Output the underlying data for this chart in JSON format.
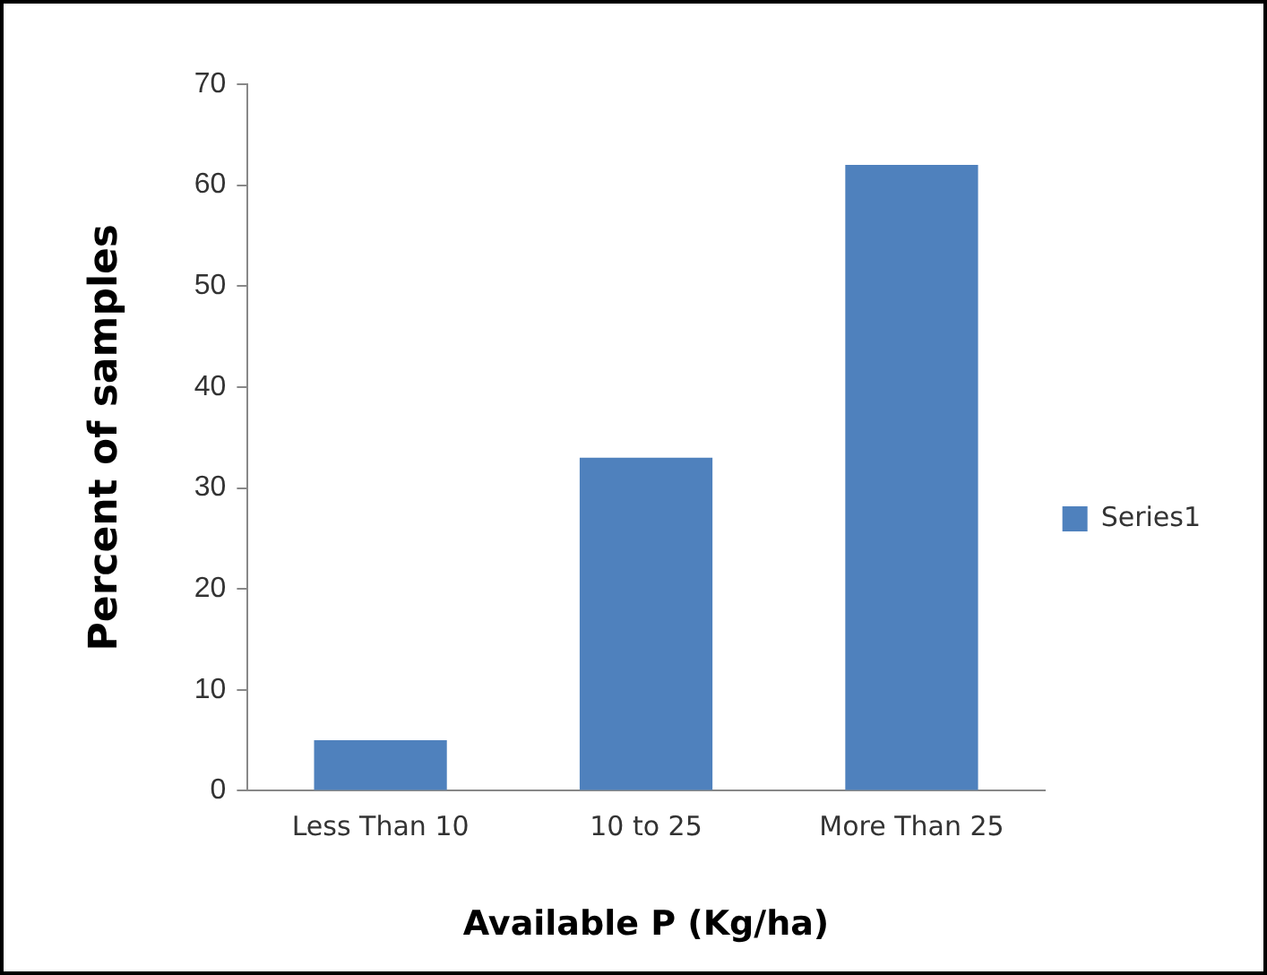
{
  "chart_data": {
    "type": "bar",
    "xlabel": "Available P (Kg/ha)",
    "ylabel": "Percent of samples",
    "categories": [
      "Less Than 10",
      "10 to 25",
      "More Than 25"
    ],
    "series": [
      {
        "name": "Series1",
        "color": "#4f81bd",
        "values": [
          5,
          33,
          62
        ]
      }
    ],
    "ylim": [
      0,
      70
    ],
    "yticks": [
      0,
      10,
      20,
      30,
      40,
      50,
      60,
      70
    ],
    "grid": false,
    "legend": "right"
  }
}
